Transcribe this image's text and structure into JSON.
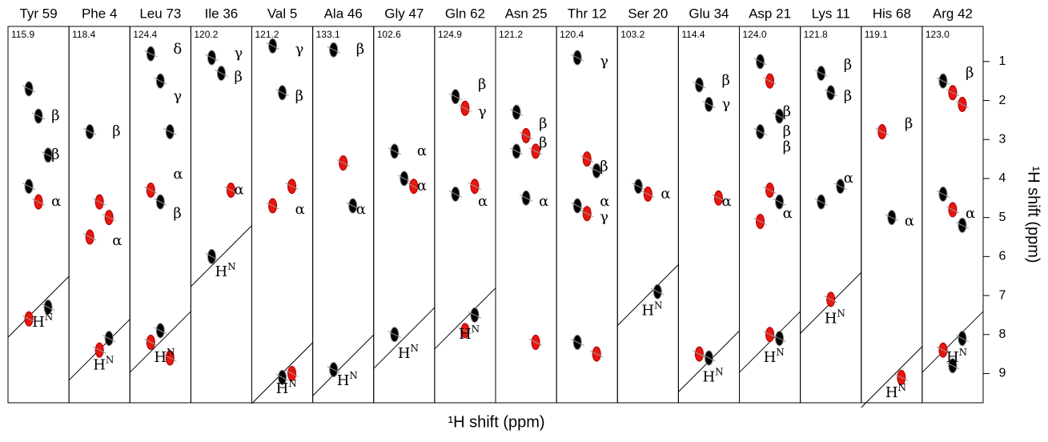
{
  "chart_data": {
    "type": "nmr-strips",
    "xlabel": "¹H shift (ppm)",
    "ylabel": "¹H shift (ppm)",
    "ylim": [
      0.1,
      9.75
    ],
    "yticks": [
      1,
      2,
      3,
      4,
      5,
      6,
      7,
      8,
      9
    ],
    "strips": [
      {
        "name": "Tyr 59",
        "shift": 115.9,
        "peaks": [
          {
            "ppm": 1.7,
            "color": "black"
          },
          {
            "ppm": 2.4,
            "color": "black"
          },
          {
            "ppm": 3.4,
            "color": "black"
          },
          {
            "ppm": 4.2,
            "color": "black"
          },
          {
            "ppm": 4.6,
            "color": "red"
          },
          {
            "ppm": 7.3,
            "color": "black"
          },
          {
            "ppm": 7.6,
            "color": "red"
          }
        ],
        "labels": [
          {
            "text": "β",
            "ppm": 2.4
          },
          {
            "text": "β",
            "ppm": 3.4
          },
          {
            "text": "α",
            "ppm": 4.6
          },
          {
            "text": "H",
            "sup": "N",
            "ppm": 7.7
          }
        ]
      },
      {
        "name": "Phe 4",
        "shift": 118.4,
        "peaks": [
          {
            "ppm": 2.8,
            "color": "black"
          },
          {
            "ppm": 4.6,
            "color": "red"
          },
          {
            "ppm": 5.0,
            "color": "red"
          },
          {
            "ppm": 5.5,
            "color": "red"
          },
          {
            "ppm": 8.4,
            "color": "red"
          },
          {
            "ppm": 8.1,
            "color": "black"
          }
        ],
        "labels": [
          {
            "text": "β",
            "ppm": 2.8
          },
          {
            "text": "α",
            "ppm": 5.6
          },
          {
            "text": "H",
            "sup": "N",
            "ppm": 8.8
          }
        ]
      },
      {
        "name": "Leu 73",
        "shift": 124.4,
        "peaks": [
          {
            "ppm": 0.8,
            "color": "black"
          },
          {
            "ppm": 1.5,
            "color": "black"
          },
          {
            "ppm": 2.8,
            "color": "black"
          },
          {
            "ppm": 4.3,
            "color": "red"
          },
          {
            "ppm": 4.6,
            "color": "black"
          },
          {
            "ppm": 8.6,
            "color": "red"
          },
          {
            "ppm": 8.2,
            "color": "red"
          },
          {
            "ppm": 7.9,
            "color": "black"
          }
        ],
        "labels": [
          {
            "text": "δ",
            "ppm": 0.7
          },
          {
            "text": "γ",
            "ppm": 1.9
          },
          {
            "text": "α",
            "ppm": 3.9
          },
          {
            "text": "β",
            "ppm": 4.9
          },
          {
            "text": "H",
            "sup": "N",
            "ppm": 8.6
          }
        ]
      },
      {
        "name": "Ile 36",
        "shift": 120.2,
        "peaks": [
          {
            "ppm": 0.9,
            "color": "black"
          },
          {
            "ppm": 1.3,
            "color": "black"
          },
          {
            "ppm": 4.3,
            "color": "red"
          },
          {
            "ppm": 6.0,
            "color": "black"
          }
        ],
        "labels": [
          {
            "text": "γ",
            "ppm": 0.8
          },
          {
            "text": "β",
            "ppm": 1.4
          },
          {
            "text": "α",
            "ppm": 4.3
          },
          {
            "text": "H",
            "sup": "N",
            "ppm": 6.4
          }
        ]
      },
      {
        "name": "Val 5",
        "shift": 121.2,
        "peaks": [
          {
            "ppm": 0.6,
            "color": "black"
          },
          {
            "ppm": 1.8,
            "color": "black"
          },
          {
            "ppm": 4.2,
            "color": "red"
          },
          {
            "ppm": 4.7,
            "color": "red"
          },
          {
            "ppm": 9.1,
            "color": "black"
          },
          {
            "ppm": 9.0,
            "color": "red"
          }
        ],
        "labels": [
          {
            "text": "γ",
            "ppm": 0.7
          },
          {
            "text": "β",
            "ppm": 1.9
          },
          {
            "text": "α",
            "ppm": 4.8
          },
          {
            "text": "H",
            "sup": "N",
            "ppm": 9.4
          }
        ]
      },
      {
        "name": "Ala 46",
        "shift": 133.1,
        "peaks": [
          {
            "ppm": 0.7,
            "color": "black"
          },
          {
            "ppm": 3.6,
            "color": "red"
          },
          {
            "ppm": 4.7,
            "color": "black"
          },
          {
            "ppm": 8.9,
            "color": "black"
          }
        ],
        "labels": [
          {
            "text": "β",
            "ppm": 0.7
          },
          {
            "text": "α",
            "ppm": 4.8
          },
          {
            "text": "H",
            "sup": "N",
            "ppm": 9.2
          }
        ]
      },
      {
        "name": "Gly 47",
        "shift": 102.6,
        "peaks": [
          {
            "ppm": 3.3,
            "color": "black"
          },
          {
            "ppm": 4.0,
            "color": "black"
          },
          {
            "ppm": 4.2,
            "color": "red"
          },
          {
            "ppm": 8.0,
            "color": "black"
          }
        ],
        "labels": [
          {
            "text": "α",
            "ppm": 3.3
          },
          {
            "text": "α",
            "ppm": 4.2
          },
          {
            "text": "H",
            "sup": "N",
            "ppm": 8.5
          }
        ]
      },
      {
        "name": "Gln 62",
        "shift": 124.9,
        "peaks": [
          {
            "ppm": 1.9,
            "color": "black"
          },
          {
            "ppm": 2.2,
            "color": "red"
          },
          {
            "ppm": 4.2,
            "color": "red"
          },
          {
            "ppm": 4.4,
            "color": "black"
          },
          {
            "ppm": 7.9,
            "color": "red"
          },
          {
            "ppm": 7.5,
            "color": "black"
          }
        ],
        "labels": [
          {
            "text": "β",
            "ppm": 1.6
          },
          {
            "text": "γ",
            "ppm": 2.3
          },
          {
            "text": "α",
            "ppm": 4.6
          },
          {
            "text": "H",
            "sup": "N",
            "ppm": 8.0
          }
        ]
      },
      {
        "name": "Asn 25",
        "shift": 121.2,
        "peaks": [
          {
            "ppm": 2.3,
            "color": "black"
          },
          {
            "ppm": 2.9,
            "color": "red"
          },
          {
            "ppm": 3.3,
            "color": "red"
          },
          {
            "ppm": 3.3,
            "color": "black"
          },
          {
            "ppm": 4.5,
            "color": "black"
          },
          {
            "ppm": 8.2,
            "color": "red"
          }
        ],
        "labels": [
          {
            "text": "β",
            "ppm": 2.6
          },
          {
            "text": "β",
            "ppm": 3.1
          },
          {
            "text": "α",
            "ppm": 4.6
          }
        ]
      },
      {
        "name": "Thr 12",
        "shift": 120.4,
        "peaks": [
          {
            "ppm": 0.9,
            "color": "black"
          },
          {
            "ppm": 3.5,
            "color": "red"
          },
          {
            "ppm": 3.8,
            "color": "black"
          },
          {
            "ppm": 4.7,
            "color": "black"
          },
          {
            "ppm": 4.9,
            "color": "red"
          },
          {
            "ppm": 8.5,
            "color": "red"
          },
          {
            "ppm": 8.2,
            "color": "black"
          }
        ],
        "labels": [
          {
            "text": "γ",
            "ppm": 1.0
          },
          {
            "text": "β",
            "ppm": 3.7
          },
          {
            "text": "α",
            "ppm": 4.6
          },
          {
            "text": "γ",
            "ppm": 5.0
          }
        ]
      },
      {
        "name": "Ser 20",
        "shift": 103.2,
        "peaks": [
          {
            "ppm": 4.2,
            "color": "black"
          },
          {
            "ppm": 4.4,
            "color": "red"
          },
          {
            "ppm": 6.9,
            "color": "black"
          }
        ],
        "labels": [
          {
            "text": "α",
            "ppm": 4.4
          },
          {
            "text": "H",
            "sup": "N",
            "ppm": 7.4
          }
        ]
      },
      {
        "name": "Glu 34",
        "shift": 114.4,
        "peaks": [
          {
            "ppm": 1.6,
            "color": "black"
          },
          {
            "ppm": 2.1,
            "color": "black"
          },
          {
            "ppm": 4.5,
            "color": "red"
          },
          {
            "ppm": 8.5,
            "color": "red"
          },
          {
            "ppm": 8.6,
            "color": "black"
          }
        ],
        "labels": [
          {
            "text": "β",
            "ppm": 1.5
          },
          {
            "text": "γ",
            "ppm": 2.1
          },
          {
            "text": "α",
            "ppm": 4.6
          },
          {
            "text": "H",
            "sup": "N",
            "ppm": 9.1
          }
        ]
      },
      {
        "name": "Asp 21",
        "shift": {
          "value": 124.0,
          "label": "124.0"
        },
        "peaks": [
          {
            "ppm": 1.0,
            "color": "black"
          },
          {
            "ppm": 1.5,
            "color": "red"
          },
          {
            "ppm": 2.4,
            "color": "black"
          },
          {
            "ppm": 2.8,
            "color": "black"
          },
          {
            "ppm": 4.3,
            "color": "red"
          },
          {
            "ppm": 4.6,
            "color": "black"
          },
          {
            "ppm": 5.1,
            "color": "red"
          },
          {
            "ppm": 8.0,
            "color": "red"
          },
          {
            "ppm": 8.1,
            "color": "black"
          }
        ],
        "labels": [
          {
            "text": "β",
            "ppm": 2.3
          },
          {
            "text": "β",
            "ppm": 2.8
          },
          {
            "text": "β",
            "ppm": 3.2
          },
          {
            "text": "α",
            "ppm": 4.9
          },
          {
            "text": "H",
            "sup": "N",
            "ppm": 8.6
          }
        ]
      },
      {
        "name": "Lys 11",
        "shift": 121.8,
        "peaks": [
          {
            "ppm": 1.3,
            "color": "black"
          },
          {
            "ppm": 1.8,
            "color": "black"
          },
          {
            "ppm": 4.2,
            "color": "black"
          },
          {
            "ppm": 4.6,
            "color": "black"
          },
          {
            "ppm": 7.1,
            "color": "red"
          }
        ],
        "labels": [
          {
            "text": "β",
            "ppm": 1.1
          },
          {
            "text": "β",
            "ppm": 1.9
          },
          {
            "text": "α",
            "ppm": 4.0
          },
          {
            "text": "H",
            "sup": "N",
            "ppm": 7.6
          }
        ]
      },
      {
        "name": "His 68",
        "shift": 119.1,
        "peaks": [
          {
            "ppm": 2.8,
            "color": "red"
          },
          {
            "ppm": 5.0,
            "color": "black"
          },
          {
            "ppm": 9.1,
            "color": "red"
          }
        ],
        "labels": [
          {
            "text": "β",
            "ppm": 2.6
          },
          {
            "text": "α",
            "ppm": 5.1
          },
          {
            "text": "H",
            "sup": "N",
            "ppm": 9.5
          }
        ]
      },
      {
        "name": "Arg 42",
        "shift": {
          "value": 123.0,
          "label": "123.0"
        },
        "peaks": [
          {
            "ppm": 1.5,
            "color": "black"
          },
          {
            "ppm": 1.8,
            "color": "red"
          },
          {
            "ppm": 2.1,
            "color": "red"
          },
          {
            "ppm": 4.4,
            "color": "black"
          },
          {
            "ppm": 4.8,
            "color": "red"
          },
          {
            "ppm": 5.2,
            "color": "black"
          },
          {
            "ppm": 8.4,
            "color": "red"
          },
          {
            "ppm": 8.8,
            "color": "black"
          },
          {
            "ppm": 8.1,
            "color": "black"
          }
        ],
        "labels": [
          {
            "text": "β",
            "ppm": 1.3
          },
          {
            "text": "α",
            "ppm": 4.9
          },
          {
            "text": "H",
            "sup": "N",
            "ppm": 8.6
          }
        ]
      }
    ]
  }
}
